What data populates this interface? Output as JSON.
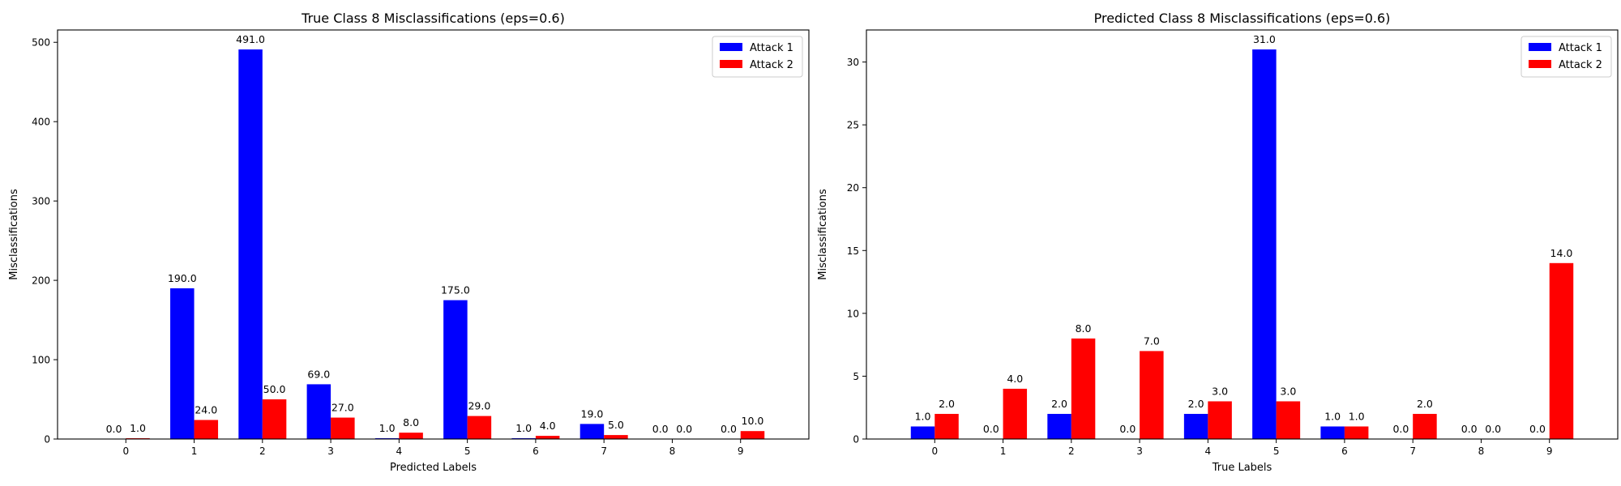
{
  "chart_data": [
    {
      "type": "bar",
      "title": "True Class 8 Misclassifications (eps=0.6)",
      "xlabel": "Predicted Labels",
      "ylabel": "Misclassifications",
      "categories": [
        "0",
        "1",
        "2",
        "3",
        "4",
        "5",
        "6",
        "7",
        "8",
        "9"
      ],
      "series": [
        {
          "name": "Attack 1",
          "color": "#0000ff",
          "values": [
            0,
            190,
            491,
            69,
            1,
            175,
            1,
            19,
            0,
            0
          ]
        },
        {
          "name": "Attack 2",
          "color": "#ff0000",
          "values": [
            1,
            24,
            50,
            27,
            8,
            29,
            4,
            5,
            0,
            10
          ]
        }
      ],
      "value_labels": [
        [
          "0.0",
          "190.0",
          "491.0",
          "69.0",
          "1.0",
          "175.0",
          "1.0",
          "19.0",
          "0.0",
          "0.0"
        ],
        [
          "1.0",
          "24.0",
          "50.0",
          "27.0",
          "8.0",
          "29.0",
          "4.0",
          "5.0",
          "0.0",
          "10.0"
        ]
      ],
      "ylim": [
        0,
        515.55
      ],
      "yticks": [
        0,
        100,
        200,
        300,
        400,
        500
      ],
      "ytick_labels": [
        "0",
        "100",
        "200",
        "300",
        "400",
        "500"
      ],
      "grid": false,
      "legend": "top-right"
    },
    {
      "type": "bar",
      "title": "Predicted Class 8 Misclassifications (eps=0.6)",
      "xlabel": "True Labels",
      "ylabel": "Misclassifications",
      "categories": [
        "0",
        "1",
        "2",
        "3",
        "4",
        "5",
        "6",
        "7",
        "8",
        "9"
      ],
      "series": [
        {
          "name": "Attack 1",
          "color": "#0000ff",
          "values": [
            1,
            0,
            2,
            0,
            2,
            31,
            1,
            0,
            0,
            0
          ]
        },
        {
          "name": "Attack 2",
          "color": "#ff0000",
          "values": [
            2,
            4,
            8,
            7,
            3,
            3,
            1,
            2,
            0,
            14
          ]
        }
      ],
      "value_labels": [
        [
          "1.0",
          "0.0",
          "2.0",
          "0.0",
          "2.0",
          "31.0",
          "1.0",
          "0.0",
          "0.0",
          "0.0"
        ],
        [
          "2.0",
          "4.0",
          "8.0",
          "7.0",
          "3.0",
          "3.0",
          "1.0",
          "2.0",
          "0.0",
          "14.0"
        ]
      ],
      "ylim": [
        0,
        32.55
      ],
      "yticks": [
        0,
        5,
        10,
        15,
        20,
        25,
        30
      ],
      "ytick_labels": [
        "0",
        "5",
        "10",
        "15",
        "20",
        "25",
        "30"
      ],
      "grid": false,
      "legend": "top-right"
    }
  ]
}
